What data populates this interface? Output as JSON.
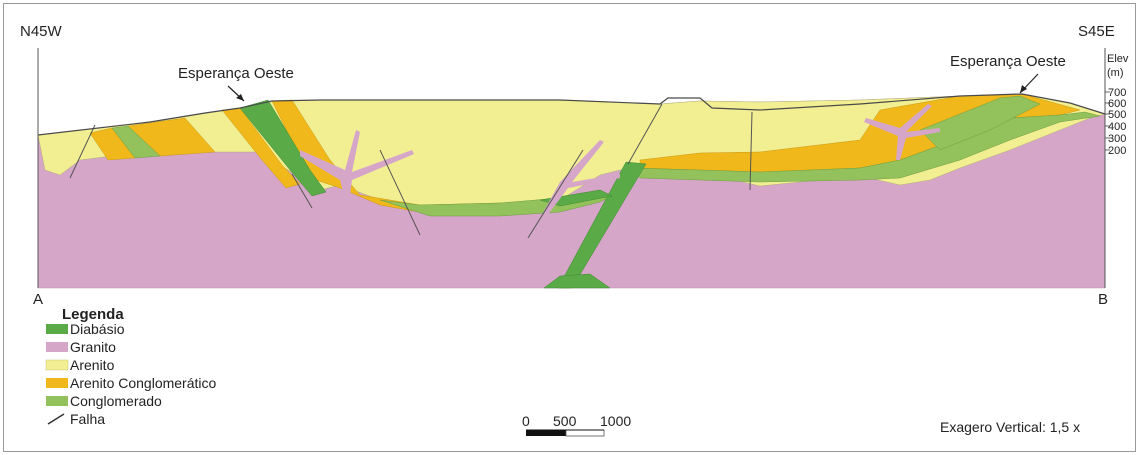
{
  "orientation": {
    "left": "N45W",
    "right": "S45E"
  },
  "endpoints": {
    "left": "A",
    "right": "B"
  },
  "annotations": {
    "left_locality": "Esperança Oeste",
    "right_locality": "Esperança Oeste"
  },
  "elevation_axis": {
    "title_line1": "Elev",
    "title_line2": "(m)",
    "ticks": [
      "700",
      "600",
      "500",
      "400",
      "300",
      "200"
    ]
  },
  "legend": {
    "title": "Legenda",
    "items": [
      {
        "label": "Diabásio",
        "color": "#5aaa48",
        "kind": "swatch"
      },
      {
        "label": "Granito",
        "color": "#d5a6c8",
        "kind": "swatch"
      },
      {
        "label": "Arenito",
        "color": "#f2ef92",
        "kind": "swatch"
      },
      {
        "label": "Arenito Conglomerático",
        "color": "#f0b81a",
        "kind": "swatch"
      },
      {
        "label": "Conglomerado",
        "color": "#93c25c",
        "kind": "swatch"
      },
      {
        "label": "Falha",
        "color": "#333333",
        "kind": "line"
      }
    ]
  },
  "scale_bar": {
    "labels": [
      "0",
      "500",
      "1000"
    ]
  },
  "vertical_exaggeration": "Exagero Vertical: 1,5 x"
}
